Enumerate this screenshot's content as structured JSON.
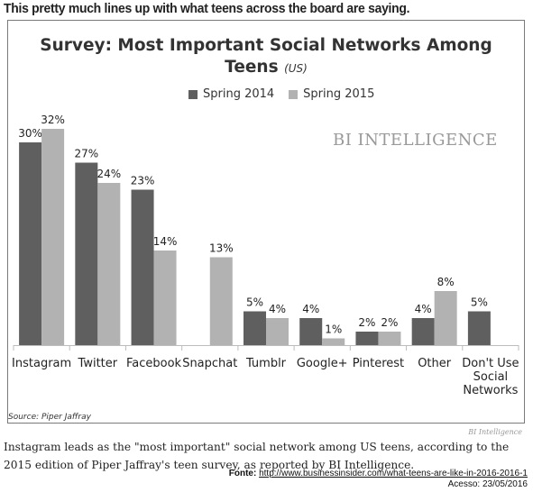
{
  "page": {
    "heading": "This pretty much lines up with what teens across the board are saying.",
    "caption": "Instagram leads as the \"most important\" social network among US teens, according to the 2015 edition of Piper Jaffray's teen survey, as reported by BI Intelligence.",
    "fonte_label": "Fonte:",
    "fonte_url": "http://www.businessinsider.com/what-teens-are-like-in-2016-2016-1",
    "acesso": "Acesso: 23/05/2016",
    "bi_small": "BI Intelligence"
  },
  "chart_data": {
    "type": "bar",
    "title": "Survey: Most Important Social Networks Among Teens",
    "title_suffix": "(US)",
    "watermark": "BI INTELLIGENCE",
    "source": "Source: Piper Jaffray",
    "legend_position": "top-center",
    "grid": false,
    "ylim": [
      0,
      32
    ],
    "categories": [
      "Instagram",
      "Twitter",
      "Facebook",
      "Snapchat",
      "Tumblr",
      "Google+",
      "Pinterest",
      "Other",
      "Don't Use Social Networks"
    ],
    "category_lines": [
      [
        "Instagram"
      ],
      [
        "Twitter"
      ],
      [
        "Facebook"
      ],
      [
        "Snapchat"
      ],
      [
        "Tumblr"
      ],
      [
        "Google+"
      ],
      [
        "Pinterest"
      ],
      [
        "Other"
      ],
      [
        "Don't Use",
        "Social",
        "Networks"
      ]
    ],
    "series": [
      {
        "name": "Spring 2014",
        "color": "#5f5f5f",
        "values": [
          30,
          27,
          23,
          null,
          5,
          4,
          2,
          4,
          5
        ]
      },
      {
        "name": "Spring 2015",
        "color": "#b2b2b2",
        "values": [
          32,
          24,
          14,
          13,
          4,
          1,
          2,
          8,
          null
        ]
      }
    ]
  }
}
